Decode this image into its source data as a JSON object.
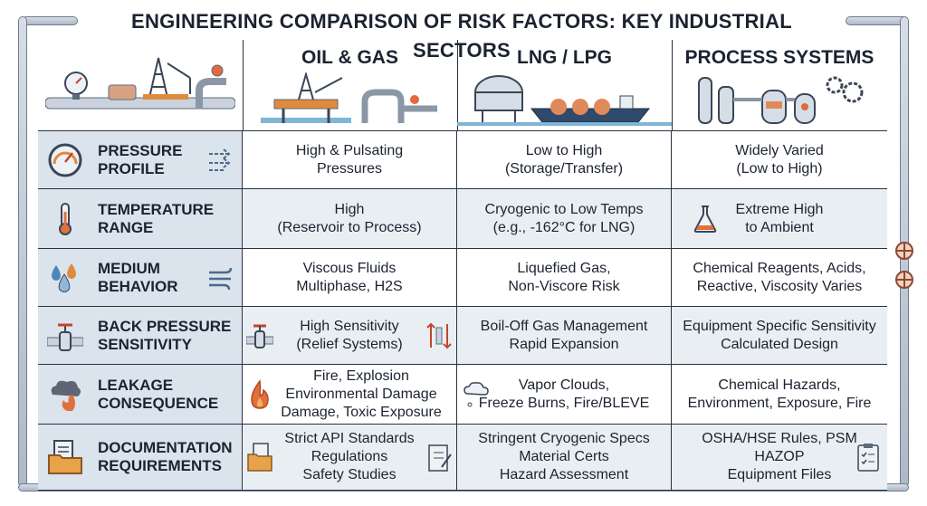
{
  "title": "ENGINEERING COMPARISON OF RISK FACTORS: KEY INDUSTRIAL SECTORS",
  "columns": [
    {
      "label": "OIL & GAS",
      "icon": "offshore-platform-icon"
    },
    {
      "label": "LNG / LPG",
      "icon": "lng-tanker-icon"
    },
    {
      "label": "PROCESS SYSTEMS",
      "icon": "process-plant-icon"
    }
  ],
  "rows": [
    {
      "label": "PRESSURE\nPROFILE",
      "icon": "pressure-gauge-icon",
      "cells": [
        "High & Pulsating\nPressures",
        "Low to High\n(Storage/Transfer)",
        "Widely Varied\n(Low to High)"
      ]
    },
    {
      "label": "TEMPERATURE\nRANGE",
      "icon": "thermometer-icon",
      "cells": [
        "High\n(Reservoir to Process)",
        "Cryogenic to Low Temps\n(e.g., -162°C for LNG)",
        "Extreme High\nto Ambient"
      ]
    },
    {
      "label": "MEDIUM\nBEHAVIOR",
      "icon": "droplets-icon",
      "cells": [
        "Viscous Fluids\nMultiphase, H2S",
        "Liquefied Gas,\nNon-Viscore Risk",
        "Chemical Reagents, Acids,\nReactive, Viscosity Varies"
      ]
    },
    {
      "label": "BACK PRESSURE\nSENSITIVITY",
      "icon": "valve-icon",
      "cells": [
        "High Sensitivity\n(Relief Systems)",
        "Boil-Off Gas Management\nRapid Expansion",
        "Equipment Specific Sensitivity\nCalculated Design"
      ]
    },
    {
      "label": "LEAKAGE\nCONSEQUENCE",
      "icon": "smoke-fire-icon",
      "cells": [
        "Fire, Explosion\nEnvironmental Damage\nDamage, Toxic Exposure",
        "Vapor Clouds,\nFreeze Burns, Fire/BLEVE",
        "Chemical Hazards,\nEnvironment, Exposure, Fire"
      ]
    },
    {
      "label": "DOCUMENTATION\nREQUIREMENTS",
      "icon": "documents-folder-icon",
      "cells": [
        "Strict API Standards\nRegulations\nSafety Studies",
        "Stringent Cryogenic Specs\nMaterial Certs\nHazard Assessment",
        "OSHA/HSE Rules, PSM\nHAZOP\nEquipment Files"
      ]
    }
  ]
}
